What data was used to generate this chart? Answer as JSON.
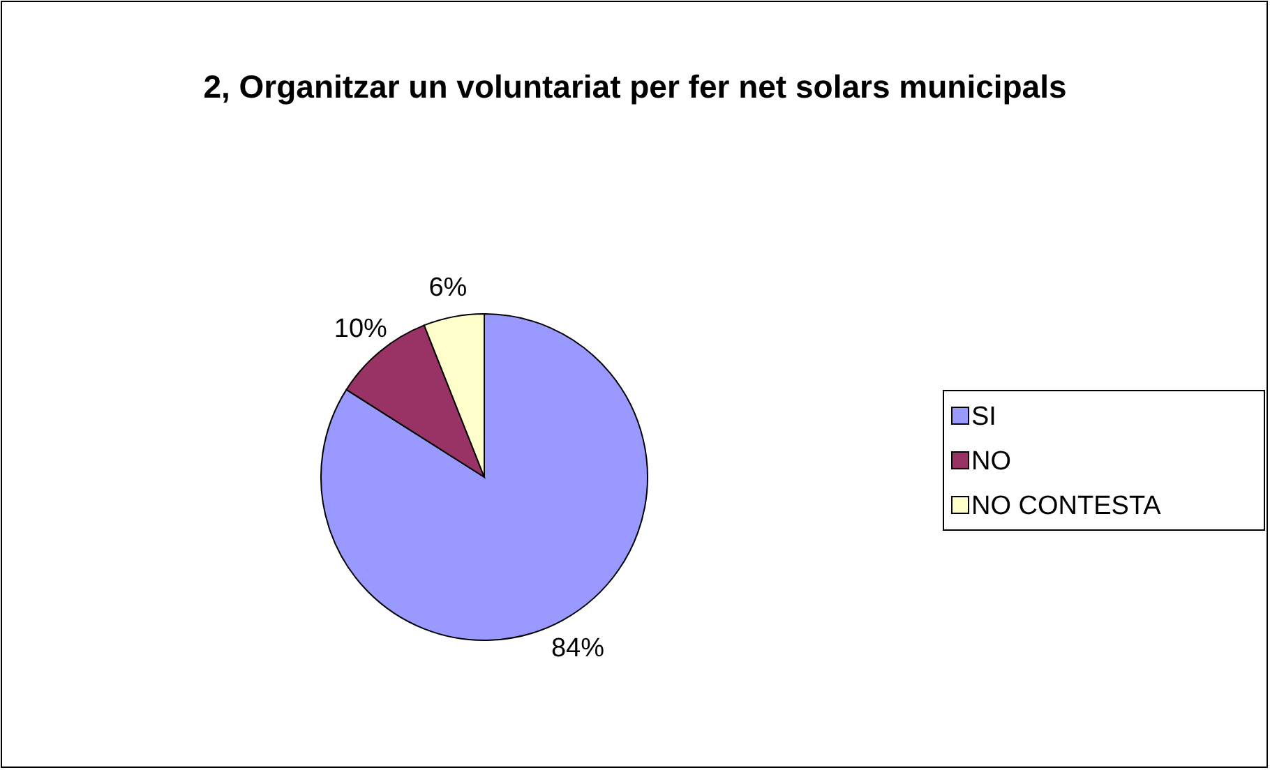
{
  "chart_data": {
    "type": "pie",
    "title": "2, Organitzar un voluntariat per fer net solars municipals",
    "categories": [
      "SI",
      "NO",
      "NO CONTESTA"
    ],
    "values": [
      84,
      10,
      6
    ],
    "colors": [
      "#9999ff",
      "#993366",
      "#ffffcc"
    ],
    "value_labels": [
      "84%",
      "10%",
      "6%"
    ],
    "legend": "right"
  }
}
